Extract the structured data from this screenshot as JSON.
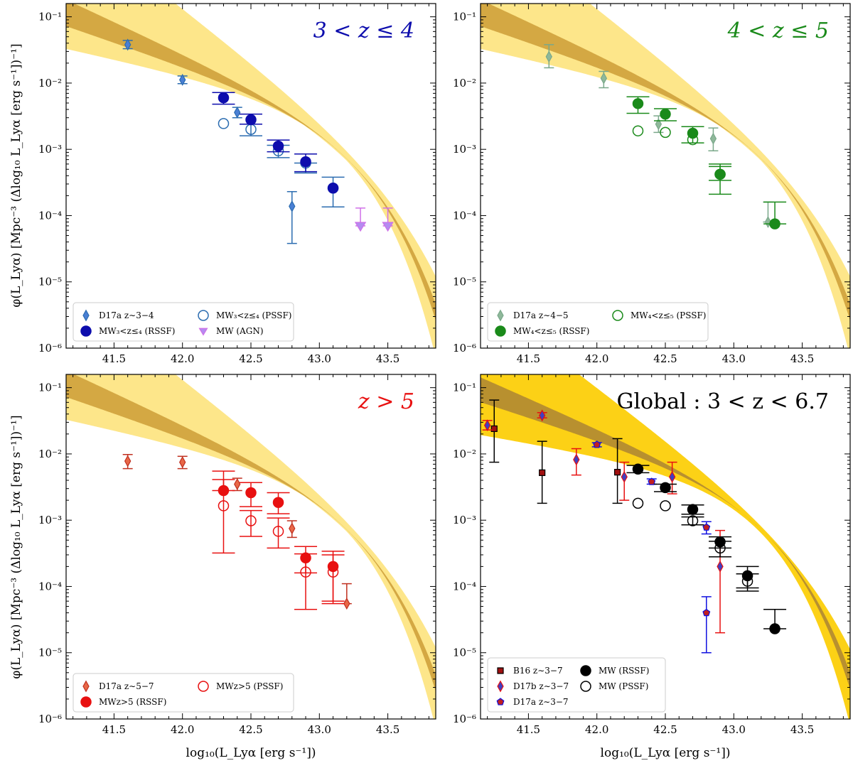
{
  "figure": {
    "xlabel": "log₁₀(L_Lyα [erg s⁻¹])",
    "ylabel": "φ(L_Lyα) [Mpc⁻³ (Δlog₁₀ L_Lyα [erg s⁻¹])⁻¹]"
  },
  "colors": {
    "band_outer": "#fde68a",
    "band_inner": "#d4a843",
    "band_outer_global": "#fcd116",
    "band_inner_global": "#b8902f",
    "blue": "#0d0dad",
    "blue_light": "#2b6cb0",
    "violet": "#d070e8",
    "green": "#1a8a1a",
    "green_light": "#7aa88a",
    "red": "#e81010",
    "salmon": "#e86848",
    "black": "#000000",
    "maroon": "#a01010"
  },
  "chart_data": [
    {
      "type": "scatter",
      "id": "p1",
      "title": "3 < z ≤ 4",
      "title_color": "#0d0dad",
      "xlim": [
        41.15,
        43.85
      ],
      "ylim_log10": [
        -6,
        -0.8
      ],
      "x_ticks": [
        "41.5",
        "42.0",
        "42.5",
        "43.0",
        "43.5"
      ],
      "y_ticks": [
        "10⁻⁶",
        "10⁻⁵",
        "10⁻⁴",
        "10⁻³",
        "10⁻²",
        "10⁻¹"
      ],
      "show_xlabel": false,
      "show_ylabel": true,
      "band": "normal",
      "legend_placement": "lower-left",
      "legend": [
        {
          "label": "D17a z∼3−4",
          "marker": "diamond",
          "color": "#2b6cb0",
          "fill": "#4a7fd4"
        },
        {
          "label": "MW₃<z≤₄ (PSSF)",
          "marker": "circle-open",
          "color": "#2b6cb0"
        },
        {
          "label": "MW₃<z≤₄ (RSSF)",
          "marker": "circle",
          "color": "#0d0dad"
        },
        {
          "label": "MW (AGN)",
          "marker": "triangle-down-open",
          "color": "#d070e8",
          "fill": "#b48cf0"
        }
      ],
      "series": [
        {
          "name": "D17a z∼3−4",
          "marker": "diamond",
          "color": "#2b6cb0",
          "fill": "#4a7fd4",
          "points": [
            [
              41.6,
              0.038,
              0.033,
              0.044
            ],
            [
              42.0,
              0.0112,
              0.0098,
              0.0128
            ],
            [
              42.4,
              0.0036,
              0.003,
              0.0043
            ],
            [
              42.8,
              0.000138,
              3.8e-05,
              0.00023
            ]
          ]
        },
        {
          "name": "MW₃<z≤₄ (PSSF)",
          "marker": "circle-open",
          "color": "#2b6cb0",
          "points": [
            [
              42.3,
              0.00245,
              0.00245,
              0.00245
            ],
            [
              42.5,
              0.002,
              0.0016,
              0.0024
            ],
            [
              42.7,
              0.00095,
              0.00075,
              0.00115
            ],
            [
              42.9,
              0.00062,
              0.00044,
              0.00062
            ],
            [
              43.1,
              0.00026,
              0.000135,
              0.00038
            ]
          ]
        },
        {
          "name": "MW₃<z≤₄ (RSSF)",
          "marker": "circle",
          "color": "#0d0dad",
          "points": [
            [
              42.3,
              0.006,
              0.0048,
              0.0072
            ],
            [
              42.5,
              0.0028,
              0.0024,
              0.0034
            ],
            [
              42.7,
              0.00112,
              0.00092,
              0.00138
            ],
            [
              42.9,
              0.00065,
              0.00046,
              0.00085
            ],
            [
              43.1,
              0.00026,
              0.00026,
              0.00026
            ]
          ]
        },
        {
          "name": "MW (AGN)",
          "marker": "triangle-down-open",
          "color": "#d070e8",
          "fill": "#b48cf0",
          "points": [
            [
              43.3,
              7e-05,
              7e-05,
              0.00013
            ],
            [
              43.5,
              7e-05,
              7e-05,
              0.00013
            ]
          ]
        }
      ]
    },
    {
      "type": "scatter",
      "id": "p2",
      "title": "4 < z ≤ 5",
      "title_color": "#1a8a1a",
      "xlim": [
        41.15,
        43.85
      ],
      "ylim_log10": [
        -6,
        -0.8
      ],
      "x_ticks": [
        "41.5",
        "42.0",
        "42.5",
        "43.0",
        "43.5"
      ],
      "y_ticks": [
        "10⁻⁶",
        "10⁻⁵",
        "10⁻⁴",
        "10⁻³",
        "10⁻²",
        "10⁻¹"
      ],
      "show_xlabel": false,
      "show_ylabel": false,
      "band": "normal",
      "legend_placement": "lower-left",
      "legend": [
        {
          "label": "D17a z∼4−5",
          "marker": "diamond",
          "color": "#7aa88a",
          "fill": "#8fb89a"
        },
        {
          "label": "MW₄<z≤₅ (PSSF)",
          "marker": "circle-open",
          "color": "#1a8a1a"
        },
        {
          "label": "MW₄<z≤₅ (RSSF)",
          "marker": "circle",
          "color": "#1a8a1a"
        }
      ],
      "series": [
        {
          "name": "D17a z∼4−5",
          "marker": "diamond",
          "color": "#7aa88a",
          "fill": "#8fb89a",
          "points": [
            [
              41.65,
              0.025,
              0.017,
              0.038
            ],
            [
              42.05,
              0.0118,
              0.0085,
              0.015
            ],
            [
              42.45,
              0.0024,
              0.0018,
              0.0032
            ],
            [
              42.85,
              0.00145,
              0.00095,
              0.0021
            ],
            [
              43.25,
              8e-05,
              8e-05,
              0.00016
            ]
          ]
        },
        {
          "name": "MW₄<z≤₅ (PSSF)",
          "marker": "circle-open",
          "color": "#1a8a1a",
          "points": [
            [
              42.3,
              0.0019,
              0.0019,
              0.0019
            ],
            [
              42.5,
              0.0018,
              0.0018,
              0.0018
            ],
            [
              42.7,
              0.0014,
              0.0014,
              0.0014
            ],
            [
              42.9,
              0.00042,
              0.00034,
              0.00055
            ]
          ]
        },
        {
          "name": "MW₄<z≤₅ (RSSF)",
          "marker": "circle",
          "color": "#1a8a1a",
          "points": [
            [
              42.3,
              0.0049,
              0.0035,
              0.0062
            ],
            [
              42.5,
              0.0034,
              0.0027,
              0.0041
            ],
            [
              42.7,
              0.00175,
              0.00125,
              0.0022
            ],
            [
              42.9,
              0.00042,
              0.00021,
              0.0006
            ],
            [
              43.3,
              7.5e-05,
              7.5e-05,
              0.00016
            ]
          ]
        }
      ]
    },
    {
      "type": "scatter",
      "id": "p3",
      "title": "z > 5",
      "title_color": "#e81010",
      "xlim": [
        41.15,
        43.85
      ],
      "ylim_log10": [
        -6,
        -0.8
      ],
      "x_ticks": [
        "41.5",
        "42.0",
        "42.5",
        "43.0",
        "43.5"
      ],
      "y_ticks": [
        "10⁻⁶",
        "10⁻⁵",
        "10⁻⁴",
        "10⁻³",
        "10⁻²",
        "10⁻¹"
      ],
      "show_xlabel": true,
      "show_ylabel": true,
      "band": "normal",
      "legend_placement": "lower-left",
      "legend": [
        {
          "label": "D17a z∼5−7",
          "marker": "diamond",
          "color": "#c03020",
          "fill": "#e86848"
        },
        {
          "label": "MWz>5 (PSSF)",
          "marker": "circle-open",
          "color": "#e81010"
        },
        {
          "label": "MWz>5 (RSSF)",
          "marker": "circle",
          "color": "#e81010"
        }
      ],
      "series": [
        {
          "name": "D17a z∼5−7",
          "marker": "diamond",
          "color": "#c03020",
          "fill": "#e86848",
          "points": [
            [
              41.6,
              0.0078,
              0.006,
              0.0098
            ],
            [
              42.0,
              0.0075,
              0.006,
              0.0092
            ],
            [
              42.4,
              0.0035,
              0.0028,
              0.0043
            ],
            [
              42.8,
              0.00075,
              0.00055,
              0.00098
            ],
            [
              43.2,
              5.5e-05,
              5.5e-05,
              0.00011
            ]
          ]
        },
        {
          "name": "MWz>5 (PSSF)",
          "marker": "circle-open",
          "color": "#e81010",
          "points": [
            [
              42.3,
              0.00165,
              0.00032,
              0.0041
            ],
            [
              42.5,
              0.00098,
              0.00057,
              0.0014
            ],
            [
              42.7,
              0.00068,
              0.00038,
              0.00108
            ],
            [
              42.9,
              0.000165,
              4.5e-05,
              0.00031
            ],
            [
              43.1,
              0.000165,
              5.5e-05,
              0.0003
            ]
          ]
        },
        {
          "name": "MWz>5 (RSSF)",
          "marker": "circle",
          "color": "#e81010",
          "points": [
            [
              42.3,
              0.0028,
              0.0028,
              0.0055
            ],
            [
              42.5,
              0.0026,
              0.0016,
              0.0037
            ],
            [
              42.7,
              0.00185,
              0.00125,
              0.0026
            ],
            [
              42.9,
              0.00027,
              0.00016,
              0.0004
            ],
            [
              43.1,
              0.0002,
              6e-05,
              0.00034
            ]
          ]
        }
      ]
    },
    {
      "type": "scatter",
      "id": "p4",
      "title": "Global : 3 < z < 6.7",
      "title_color": "#000000",
      "xlim": [
        41.15,
        43.85
      ],
      "ylim_log10": [
        -6,
        -0.8
      ],
      "x_ticks": [
        "41.5",
        "42.0",
        "42.5",
        "43.0",
        "43.5"
      ],
      "y_ticks": [
        "10⁻⁶",
        "10⁻⁵",
        "10⁻⁴",
        "10⁻³",
        "10⁻²",
        "10⁻¹"
      ],
      "show_xlabel": true,
      "show_ylabel": false,
      "band": "global",
      "legend_placement": "lower-left",
      "legend": [
        {
          "label": "B16 z∼3−7",
          "marker": "square",
          "color": "#000000",
          "fill": "#a01010"
        },
        {
          "label": "D17b z∼3−7",
          "marker": "diamond",
          "color": "#e81010",
          "fill": "#4040c0"
        },
        {
          "label": "D17a z∼3−7",
          "marker": "pentagon",
          "color": "#1010e0",
          "fill": "#c02020"
        },
        {
          "label": "MW (RSSF)",
          "marker": "circle",
          "color": "#000000"
        },
        {
          "label": "MW (PSSF)",
          "marker": "circle-open",
          "color": "#000000"
        }
      ],
      "series": [
        {
          "name": "B16 z∼3−7",
          "marker": "square",
          "color": "#000000",
          "fill": "#a01010",
          "points": [
            [
              41.25,
              0.024,
              0.0075,
              0.065
            ],
            [
              41.6,
              0.0052,
              0.0018,
              0.0155
            ],
            [
              42.15,
              0.0053,
              0.0018,
              0.017
            ]
          ]
        },
        {
          "name": "D17b z∼3−7",
          "marker": "diamond",
          "color": "#e81010",
          "fill": "#4040c0",
          "points": [
            [
              41.2,
              0.027,
              0.023,
              0.032
            ],
            [
              41.6,
              0.038,
              0.035,
              0.042
            ],
            [
              41.85,
              0.0082,
              0.0048,
              0.012
            ],
            [
              42.2,
              0.0045,
              0.002,
              0.0075
            ],
            [
              42.55,
              0.0045,
              0.0025,
              0.0075
            ],
            [
              42.9,
              0.0002,
              2e-05,
              0.0007
            ]
          ]
        },
        {
          "name": "D17a z∼3−7",
          "marker": "pentagon",
          "color": "#1010e0",
          "fill": "#c02020",
          "points": [
            [
              42.0,
              0.0138,
              0.0128,
              0.0148
            ],
            [
              42.4,
              0.0038,
              0.0035,
              0.0042
            ],
            [
              42.8,
              0.00078,
              0.00062,
              0.00095
            ],
            [
              42.8,
              4e-05,
              1e-05,
              7e-05
            ]
          ]
        },
        {
          "name": "MW (RSSF)",
          "marker": "circle",
          "color": "#000000",
          "points": [
            [
              42.3,
              0.0059,
              0.0052,
              0.0067
            ],
            [
              42.5,
              0.0031,
              0.0027,
              0.0035
            ],
            [
              42.7,
              0.00145,
              0.00123,
              0.0017
            ],
            [
              42.9,
              0.00047,
              0.00038,
              0.00056
            ],
            [
              43.1,
              0.000145,
              9.5e-05,
              0.0002
            ],
            [
              43.3,
              2.3e-05,
              2.3e-05,
              4.5e-05
            ]
          ]
        },
        {
          "name": "MW (PSSF)",
          "marker": "circle-open",
          "color": "#000000",
          "points": [
            [
              42.3,
              0.0018,
              0.0018,
              0.0018
            ],
            [
              42.5,
              0.00165,
              0.00165,
              0.00165
            ],
            [
              42.7,
              0.00098,
              0.00085,
              0.00112
            ],
            [
              42.9,
              0.00038,
              0.00028,
              0.00048
            ],
            [
              43.1,
              0.00012,
              8.5e-05,
              0.000155
            ]
          ]
        }
      ]
    }
  ]
}
